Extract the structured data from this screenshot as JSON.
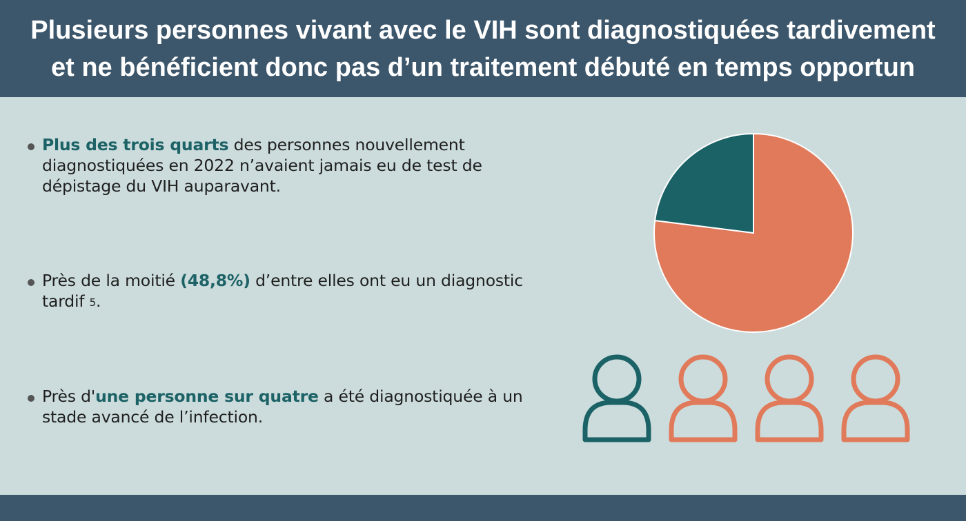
{
  "header": {
    "title_line1": "Plusieurs personnes vivant avec le VIH sont diagnostiquées tardivement",
    "title_line2": "et ne bénéficient donc pas d’un traitement débuté en temps opportun"
  },
  "bullets": [
    {
      "highlight": "Plus des trois quarts",
      "text": " des personnes nouvellement diagnostiquées en 2022 n’avaient jamais eu de test de dépistage du VIH auparavant."
    },
    {
      "pre": "Près de la moitié ",
      "highlight": "(48,8%)",
      "post": " d’entre elles ont eu un diagnostic tardif ",
      "superscript": "5",
      "end": "."
    },
    {
      "pre": "Près d'",
      "highlight": "une personne sur quatre",
      "post": " a été diagnostiquée à un stade avancé de l’infection."
    }
  ],
  "chart_data": {
    "type": "pie",
    "slices": [
      {
        "value": 77,
        "color": "#e07a5a"
      },
      {
        "value": 23,
        "color": "#1b6266"
      }
    ]
  },
  "people_icons": {
    "count": 4,
    "highlighted": 1,
    "highlight_color": "#1b6266",
    "other_color": "#e07a5a"
  },
  "colors": {
    "header_bg": "#3c566b",
    "body_bg": "#ccdcdc",
    "accent_teal": "#1c6266",
    "accent_orange": "#e07a5a"
  }
}
